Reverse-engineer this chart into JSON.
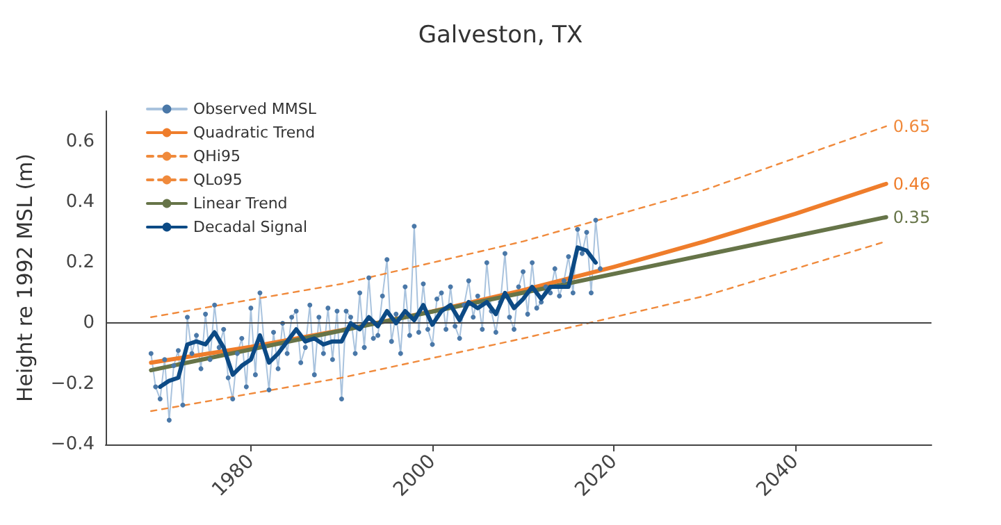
{
  "chart_data": {
    "type": "line",
    "title": "Galveston, TX",
    "ylabel": "Height re 1992 MSL (m)",
    "xlim": [
      1964,
      2055
    ],
    "xticks": [
      1980,
      2000,
      2020,
      2040
    ],
    "ylim": [
      -0.4,
      0.7
    ],
    "yticks": [
      {
        "value": -0.4,
        "label": "−0.4"
      },
      {
        "value": -0.2,
        "label": "−0.2"
      },
      0,
      0.2,
      0.4,
      0.6
    ],
    "grid": false,
    "legend": "top left",
    "ref_lines": [
      {
        "axis": "y",
        "value": 0,
        "color": "#444444"
      }
    ],
    "series": [
      {
        "name": "Observed MMSL",
        "marker": "circle",
        "line_style": "solid",
        "color": "#4a78a8",
        "x": [
          1969,
          1969.5,
          1970,
          1970.5,
          1971,
          1971.5,
          1972,
          1972.5,
          1973,
          1973.5,
          1974,
          1974.5,
          1975,
          1975.5,
          1976,
          1976.5,
          1977,
          1977.5,
          1978,
          1978.5,
          1979,
          1979.5,
          1980,
          1980.5,
          1981,
          1981.5,
          1982,
          1982.5,
          1983,
          1983.5,
          1984,
          1984.5,
          1985,
          1985.5,
          1986,
          1986.5,
          1987,
          1987.5,
          1988,
          1988.5,
          1989,
          1989.5,
          1990,
          1990.5,
          1991,
          1991.5,
          1992,
          1992.5,
          1993,
          1993.5,
          1994,
          1994.5,
          1995,
          1995.5,
          1996,
          1996.5,
          1997,
          1997.5,
          1998,
          1998.5,
          1999,
          1999.5,
          2000,
          2000.5,
          2001,
          2001.5,
          2002,
          2002.5,
          2003,
          2003.5,
          2004,
          2004.5,
          2005,
          2005.5,
          2006,
          2006.5,
          2007,
          2007.5,
          2008,
          2008.5,
          2009,
          2009.5,
          2010,
          2010.5,
          2011,
          2011.5,
          2012,
          2012.5,
          2013,
          2013.5,
          2014,
          2014.5,
          2015,
          2015.5,
          2016,
          2016.5,
          2017,
          2017.5,
          2018,
          2018.5
        ],
        "values": [
          -0.1,
          -0.21,
          -0.25,
          -0.12,
          -0.32,
          -0.14,
          -0.09,
          -0.27,
          0.02,
          -0.1,
          -0.04,
          -0.15,
          0.03,
          -0.12,
          0.06,
          -0.08,
          -0.02,
          -0.18,
          -0.25,
          -0.1,
          -0.05,
          -0.21,
          0.05,
          -0.17,
          0.1,
          -0.08,
          -0.22,
          -0.03,
          -0.15,
          0.0,
          -0.1,
          0.02,
          0.04,
          -0.13,
          -0.08,
          0.06,
          -0.17,
          0.02,
          -0.1,
          0.05,
          -0.12,
          0.04,
          -0.25,
          0.04,
          0.02,
          -0.1,
          0.1,
          -0.08,
          0.15,
          -0.05,
          -0.04,
          0.09,
          0.21,
          -0.06,
          0.03,
          -0.1,
          0.12,
          -0.04,
          0.32,
          -0.03,
          0.13,
          -0.02,
          -0.07,
          0.08,
          0.1,
          -0.02,
          0.12,
          -0.01,
          -0.05,
          0.06,
          0.14,
          0.02,
          0.09,
          -0.02,
          0.2,
          0.04,
          -0.03,
          0.07,
          0.23,
          0.02,
          -0.02,
          0.12,
          0.17,
          0.03,
          0.2,
          0.05,
          0.07,
          0.12,
          0.1,
          0.18,
          0.09,
          0.14,
          0.22,
          0.1,
          0.31,
          0.23,
          0.3,
          0.1,
          0.34,
          0.18
        ]
      },
      {
        "name": "Quadratic Trend",
        "marker": "none",
        "line_style": "solid",
        "color": "#ef7d2b",
        "x": [
          1969,
          1980,
          1990,
          2000,
          2010,
          2020,
          2030,
          2040,
          2050
        ],
        "values": [
          -0.13,
          -0.078,
          -0.023,
          0.039,
          0.109,
          0.186,
          0.27,
          0.361,
          0.46
        ],
        "value_labels": [
          null,
          null,
          null,
          null,
          null,
          null,
          null,
          null,
          "0.46"
        ]
      },
      {
        "name": "QHi95",
        "marker": "none",
        "line_style": "dashed",
        "color": "#f08a3c",
        "x": [
          1969,
          1990,
          2010,
          2030,
          2050
        ],
        "values": [
          0.02,
          0.13,
          0.27,
          0.44,
          0.65
        ],
        "value_labels": [
          null,
          null,
          null,
          null,
          "0.65"
        ]
      },
      {
        "name": "QLo95",
        "marker": "none",
        "line_style": "dashed",
        "color": "#f08a3c",
        "x": [
          1969,
          1990,
          2010,
          2030,
          2050
        ],
        "values": [
          -0.29,
          -0.18,
          -0.05,
          0.09,
          0.27
        ]
      },
      {
        "name": "Linear Trend",
        "marker": "none",
        "line_style": "solid",
        "color": "#667448",
        "x": [
          1969,
          2050
        ],
        "values": [
          -0.155,
          0.35
        ],
        "value_labels": [
          null,
          "0.35"
        ]
      },
      {
        "name": "Decadal Signal",
        "marker": "none",
        "line_style": "solid",
        "color": "#0c4a85",
        "x": [
          1970,
          1971,
          1972,
          1973,
          1974,
          1975,
          1976,
          1977,
          1978,
          1979,
          1980,
          1981,
          1982,
          1983,
          1984,
          1985,
          1986,
          1987,
          1988,
          1989,
          1990,
          1991,
          1992,
          1993,
          1994,
          1995,
          1996,
          1997,
          1998,
          1999,
          2000,
          2001,
          2002,
          2003,
          2004,
          2005,
          2006,
          2007,
          2008,
          2009,
          2010,
          2011,
          2012,
          2013,
          2014,
          2015,
          2016,
          2017,
          2018
        ],
        "values": [
          -0.21,
          -0.19,
          -0.18,
          -0.07,
          -0.06,
          -0.07,
          -0.03,
          -0.08,
          -0.17,
          -0.14,
          -0.12,
          -0.04,
          -0.13,
          -0.1,
          -0.06,
          -0.02,
          -0.06,
          -0.05,
          -0.07,
          -0.06,
          -0.06,
          0.0,
          -0.02,
          0.02,
          -0.01,
          0.04,
          0.0,
          0.04,
          0.01,
          0.06,
          -0.005,
          0.04,
          0.06,
          0.01,
          0.07,
          0.05,
          0.07,
          0.03,
          0.1,
          0.05,
          0.08,
          0.12,
          0.08,
          0.12,
          0.12,
          0.12,
          0.25,
          0.24,
          0.2
        ]
      }
    ]
  }
}
